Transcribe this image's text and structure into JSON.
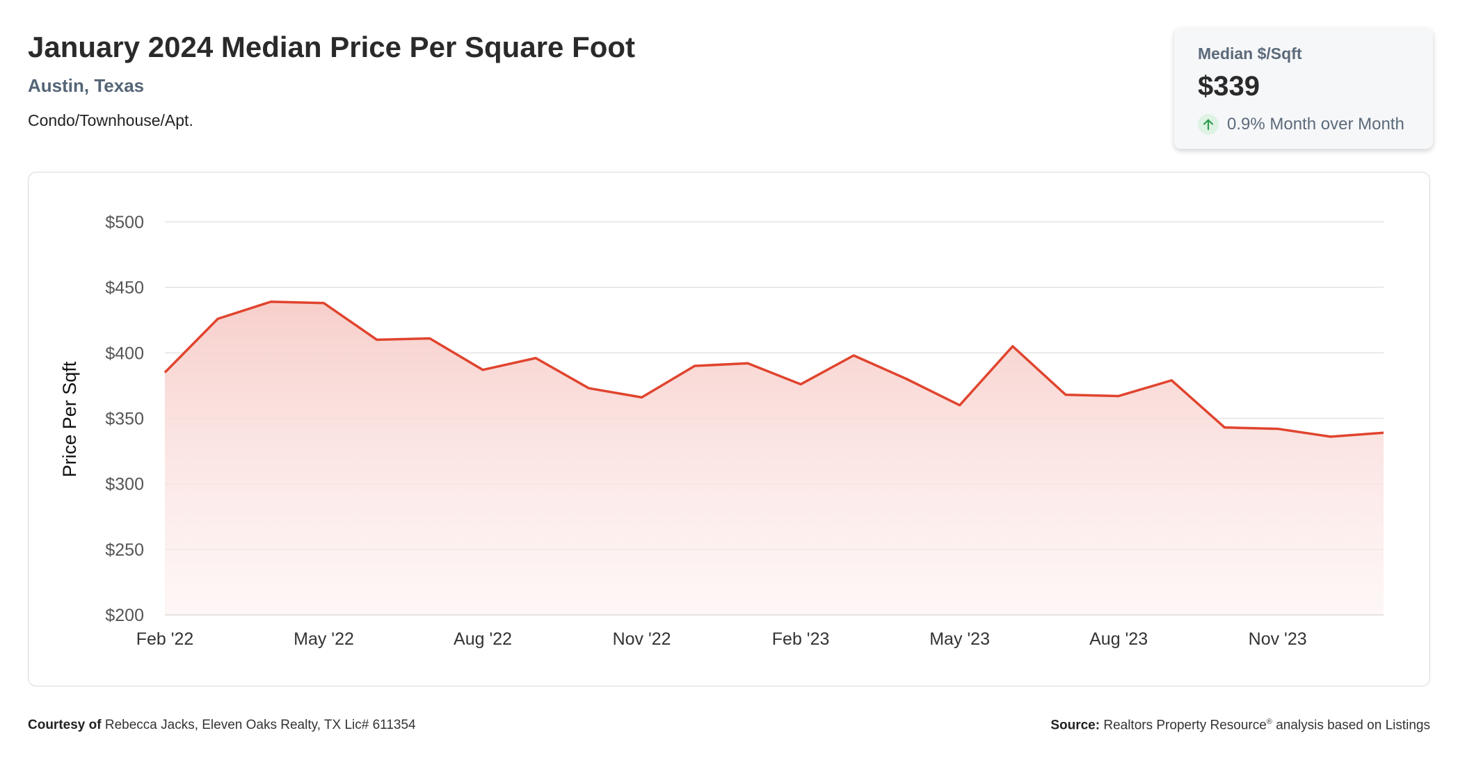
{
  "header": {
    "title": "January 2024 Median Price Per Square Foot",
    "location": "Austin, Texas",
    "property_type": "Condo/Townhouse/Apt."
  },
  "stat": {
    "label": "Median $/Sqft",
    "value": "$339",
    "change": "0.9% Month over Month",
    "icon": "arrow-up-icon"
  },
  "colors": {
    "line": "#e0442e",
    "fill_top": "#f7cfcb",
    "fill_bottom": "#fdf2f1",
    "grid": "#e3e3e3",
    "up_arrow": "#2e9e4f"
  },
  "chart_data": {
    "type": "area",
    "ylabel": "Price Per Sqft",
    "ylim": [
      200,
      500
    ],
    "yticks": [
      "$500",
      "$450",
      "$400",
      "$350",
      "$300",
      "$250",
      "$200"
    ],
    "ytick_values": [
      500,
      450,
      400,
      350,
      300,
      250,
      200
    ],
    "xtick_labels": [
      "Feb '22",
      "May '22",
      "Aug '22",
      "Nov '22",
      "Feb '23",
      "May '23",
      "Aug '23",
      "Nov '23"
    ],
    "xtick_indices": [
      0,
      3,
      6,
      9,
      12,
      15,
      18,
      21
    ],
    "x": [
      "Feb '22",
      "Mar '22",
      "Apr '22",
      "May '22",
      "Jun '22",
      "Jul '22",
      "Aug '22",
      "Sep '22",
      "Oct '22",
      "Nov '22",
      "Dec '22",
      "Jan '23",
      "Feb '23",
      "Mar '23",
      "Apr '23",
      "May '23",
      "Jun '23",
      "Jul '23",
      "Aug '23",
      "Sep '23",
      "Oct '23",
      "Nov '23",
      "Dec '23",
      "Jan '24"
    ],
    "series": [
      {
        "values": [
          385,
          426,
          439,
          438,
          410,
          411,
          387,
          396,
          373,
          366,
          390,
          392,
          376,
          398,
          380,
          360,
          405,
          368,
          367,
          379,
          343,
          342,
          336,
          339
        ]
      }
    ],
    "grid": true
  },
  "footer": {
    "courtesy_label": "Courtesy of",
    "courtesy_text": "Rebecca Jacks, Eleven Oaks Realty, TX Lic# 611354",
    "source_label": "Source:",
    "source_text": "Realtors Property Resource",
    "source_mark": "®",
    "source_suffix": "analysis based on Listings"
  }
}
